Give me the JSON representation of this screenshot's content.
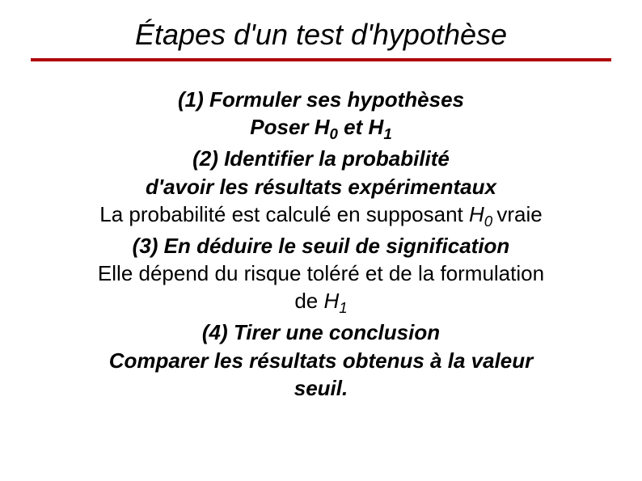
{
  "slide": {
    "title": "Étapes d'un test d'hypothèse",
    "title_color": "#000000",
    "title_font_size": 36,
    "rule_color": "#b00000",
    "background_color": "#ffffff",
    "body_font_size": 26,
    "lines": {
      "step1": "(1) Formuler ses hypothèses",
      "step1_detail_prefix": "Poser ",
      "H0_sym": "H",
      "H0_sub": "0",
      "et": " et ",
      "H1_sym": "H",
      "H1_sub": "1",
      "step2": "(2) Identifier la probabilité",
      "step2_b": "d'avoir les résultats expérimentaux",
      "plain2_prefix": "La probabilité est calculé en supposant  ",
      "plain2_Hsym": "H",
      "plain2_Hsub": "0 ",
      "plain2_suffix": "vraie",
      "step3": "(3) En déduire le seuil de signification",
      "plain3_a": "Elle dépend du risque toléré et de la formulation",
      "plain3_de": "de ",
      "plain3_Hsym": "H",
      "plain3_Hsub": "1",
      "step4": "(4) Tirer une conclusion",
      "step4_detail_a": "Comparer les résultats obtenus à la valeur",
      "step4_detail_b": "seuil."
    }
  }
}
